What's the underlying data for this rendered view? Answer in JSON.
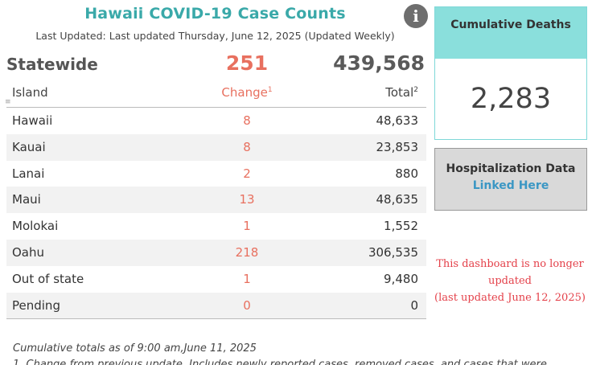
{
  "header": {
    "title": "Hawaii COVID-19 Case Counts",
    "last_updated": "Last Updated: Last updated Thursday, June 12, 2025 (Updated Weekly)",
    "info_icon": "i"
  },
  "statewide": {
    "label": "Statewide",
    "change": "251",
    "total": "439,568"
  },
  "table": {
    "columns": {
      "island": "Island",
      "change": "Change",
      "change_sup": "1",
      "total": "Total",
      "total_sup": "2"
    },
    "corner_mark": "≡",
    "rows": [
      {
        "island": "Hawaii",
        "change": "8",
        "total": "48,633"
      },
      {
        "island": "Kauai",
        "change": "8",
        "total": "23,853"
      },
      {
        "island": "Lanai",
        "change": "2",
        "total": "880"
      },
      {
        "island": "Maui",
        "change": "13",
        "total": "48,635"
      },
      {
        "island": "Molokai",
        "change": "1",
        "total": "1,552"
      },
      {
        "island": "Oahu",
        "change": "218",
        "total": "306,535"
      },
      {
        "island": "Out of state",
        "change": "1",
        "total": "9,480"
      },
      {
        "island": "Pending",
        "change": "0",
        "total": "0"
      }
    ]
  },
  "footnotes": {
    "cumulative": "Cumulative totals as of 9:00 am,June 11, 2025",
    "note1": "1. Change from previous update. Includes newly reported cases, removed cases, and cases that were"
  },
  "deaths": {
    "title": "Cumulative Deaths",
    "value": "2,283"
  },
  "hospitalization": {
    "title": "Hospitalization Data",
    "link": "Linked Here"
  },
  "notice": {
    "line1": "This dashboard is no longer updated",
    "line2": "(last updated June 12, 2025)"
  },
  "colors": {
    "accent": "#3aa9a9",
    "change": "#e8705f",
    "deaths_header": "#8adfdc",
    "link": "#3b97c4",
    "notice": "#e4414a"
  }
}
